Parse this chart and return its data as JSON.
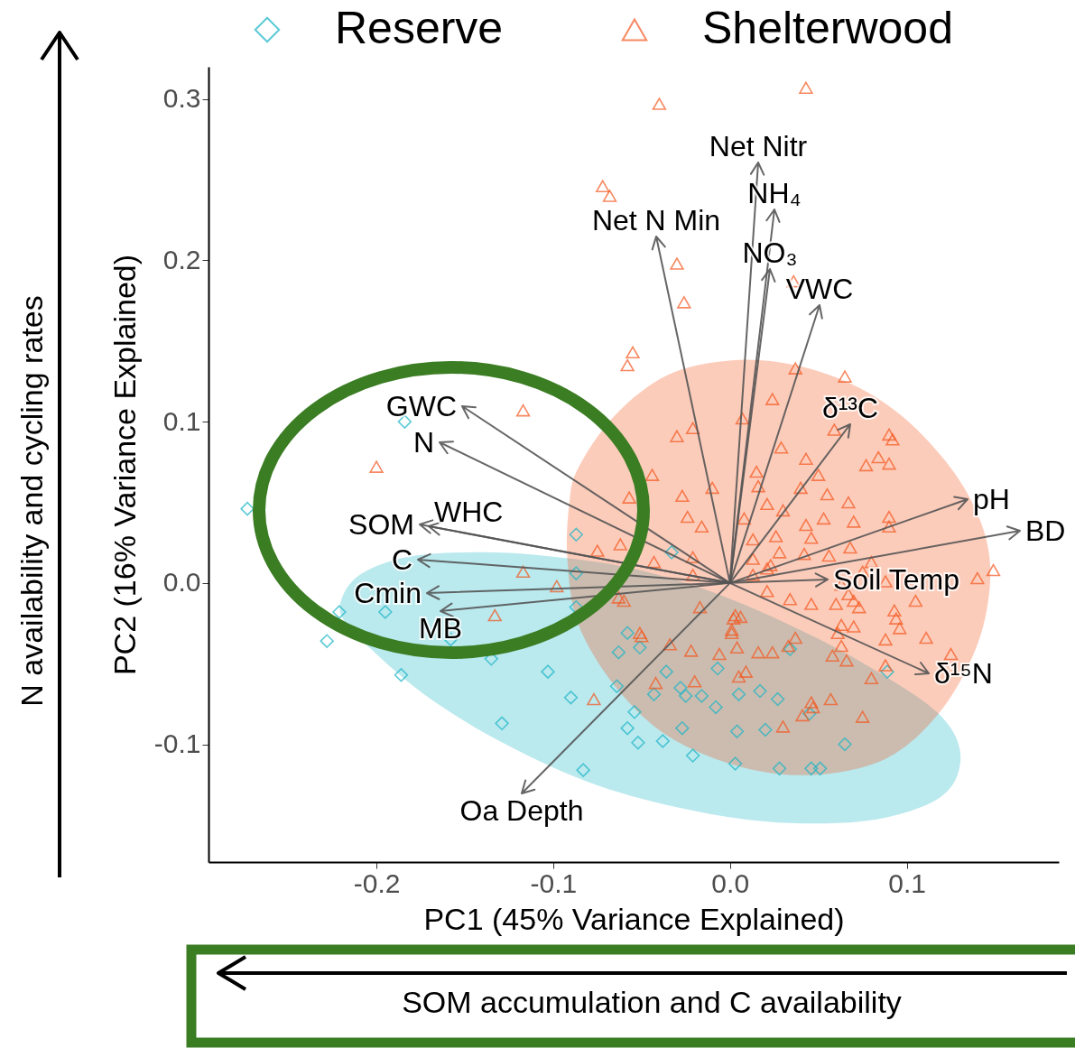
{
  "chart_data": {
    "type": "scatter",
    "xlabel": "PC1 (45% Variance Explained)",
    "ylabel": "PC2 (16% Variance Explained)",
    "xlim": [
      -0.295,
      0.186
    ],
    "ylim": [
      -0.173,
      0.32
    ],
    "xticks": [
      -0.2,
      -0.1,
      {
        "value": 0,
        "label": "0.0"
      },
      0.1
    ],
    "yticks": [
      -0.1,
      {
        "value": 0,
        "label": "0.0"
      },
      0.1,
      0.2,
      0.3
    ],
    "legend": "top",
    "annotations": [
      "N availability and cycling rates",
      "SOM accumulation and C availability",
      "Net Nitr",
      "NH₄",
      "NO₃",
      "VWC",
      "Net N Min",
      "GWC",
      "N",
      "SOM",
      "WHC",
      "C",
      "Cmin",
      "MB",
      "Oa Depth",
      "δ¹³C",
      "pH",
      "BD",
      "Soil Temp",
      "δ¹⁵N"
    ],
    "series": [
      {
        "type": "area",
        "color": "#1ab5c6",
        "x": [
          -0.219,
          -0.208,
          -0.183,
          -0.147,
          -0.106,
          -0.055,
          -0.004,
          0.047,
          0.088,
          0.118,
          0.13,
          0.126,
          0.108,
          0.073,
          0.021,
          -0.03,
          -0.081,
          -0.132,
          -0.173,
          -0.203,
          -0.219
        ],
        "values": [
          -0.008,
          0.006,
          0.016,
          0.019,
          0.017,
          0.009,
          -0.008,
          -0.033,
          -0.058,
          -0.081,
          -0.103,
          -0.125,
          -0.139,
          -0.148,
          -0.148,
          -0.139,
          -0.123,
          -0.097,
          -0.069,
          -0.041,
          -0.022
        ]
      },
      {
        "type": "area",
        "color": "#f4561d",
        "x": [
          -0.086,
          -0.065,
          -0.035,
          0.001,
          0.037,
          0.073,
          0.103,
          0.129,
          0.144,
          0.147,
          0.139,
          0.118,
          0.088,
          0.047,
          0.006,
          -0.035,
          -0.065,
          -0.086,
          -0.092,
          -0.091
        ],
        "values": [
          0.071,
          0.104,
          0.129,
          0.138,
          0.135,
          0.121,
          0.098,
          0.065,
          0.031,
          -0.002,
          -0.041,
          -0.081,
          -0.109,
          -0.119,
          -0.114,
          -0.095,
          -0.064,
          -0.025,
          0.015,
          0.048
        ]
      },
      {
        "name": "Reserve",
        "color": "#1ab5c6",
        "marker": "diamond",
        "x": [
          -0.184,
          -0.273,
          -0.087,
          -0.087,
          -0.221,
          -0.195,
          -0.087,
          -0.228,
          -0.158,
          -0.135,
          -0.186,
          -0.103,
          -0.09,
          -0.129,
          -0.083,
          -0.033,
          -0.058,
          -0.063,
          -0.051,
          -0.036,
          -0.007,
          0.034,
          0.089,
          -0.064,
          -0.043,
          -0.028,
          -0.025,
          -0.016,
          -0.008,
          0.005,
          0.017,
          0.027,
          -0.054,
          0.045,
          -0.058,
          -0.052,
          -0.038,
          -0.027,
          0.004,
          0.02,
          -0.021,
          0.065,
          0.003,
          0.028,
          0.046,
          0.051
        ],
        "values": [
          0.1,
          0.046,
          0.03,
          0.006,
          -0.018,
          -0.018,
          -0.015,
          -0.036,
          -0.035,
          -0.047,
          -0.057,
          -0.055,
          -0.071,
          -0.087,
          -0.116,
          0.019,
          -0.031,
          -0.043,
          -0.04,
          -0.055,
          -0.053,
          -0.041,
          -0.055,
          -0.064,
          -0.069,
          -0.065,
          -0.07,
          -0.07,
          -0.077,
          -0.069,
          -0.067,
          -0.072,
          -0.08,
          -0.081,
          -0.09,
          -0.099,
          -0.098,
          -0.09,
          -0.092,
          -0.091,
          -0.107,
          -0.1,
          -0.112,
          -0.115,
          -0.115,
          -0.115
        ]
      },
      {
        "name": "Shelterwood",
        "color": "#f4561d",
        "marker": "triangle",
        "x": [
          0.043,
          -0.04,
          -0.072,
          -0.068,
          -0.03,
          -0.026,
          0.036,
          -0.055,
          -0.058,
          -0.117,
          -0.2,
          -0.117,
          -0.098,
          -0.133,
          0.037,
          0.065,
          0.024,
          0.007,
          0.059,
          0.09,
          0.092,
          0.029,
          -0.03,
          -0.021,
          0.043,
          0.084,
          0.077,
          0.09,
          -0.044,
          0.015,
          0.05,
          -0.01,
          0.016,
          0.04,
          -0.027,
          -0.057,
          0.055,
          0.067,
          0.021,
          0.03,
          -0.024,
          -0.016,
          0.008,
          0.043,
          0.053,
          0.07,
          0.09,
          0.09,
          0.046,
          0.013,
          0.026,
          -0.075,
          -0.062,
          -0.043,
          -0.021,
          0.013,
          0.028,
          0.042,
          0.056,
          0.068,
          0.08,
          0.149,
          0.14,
          0.021,
          0.023,
          0.013,
          0.063,
          0.075,
          0.088,
          -0.063,
          -0.06,
          -0.017,
          0.021,
          0.034,
          0.046,
          0.06,
          0.067,
          0.07,
          0.073,
          0.093,
          0.094,
          0.105,
          -0.021,
          0.003,
          0.006,
          0.002,
          0.001,
          0.001,
          -0.051,
          -0.05,
          -0.034,
          -0.022,
          -0.006,
          0.004,
          0.016,
          0.024,
          0.033,
          0.037,
          0.096,
          0.088,
          0.111,
          0.125,
          0.063,
          0.07,
          0.061,
          0.063,
          0.058,
          0.066,
          0.088,
          0.08,
          -0.042,
          -0.02,
          0.005,
          0.009,
          -0.077,
          0.046,
          0.047,
          0.041,
          0.057,
          0.075,
          0.03
        ],
        "values": [
          0.307,
          0.297,
          0.246,
          0.24,
          0.198,
          0.174,
          0.187,
          0.143,
          0.135,
          0.107,
          0.072,
          0.007,
          -0.002,
          -0.02,
          0.133,
          0.128,
          0.114,
          0.102,
          0.095,
          0.092,
          0.089,
          0.084,
          0.091,
          0.096,
          0.077,
          0.078,
          0.073,
          0.074,
          0.067,
          0.069,
          0.067,
          0.059,
          0.06,
          0.059,
          0.054,
          0.053,
          0.055,
          0.05,
          0.049,
          0.045,
          0.041,
          0.035,
          0.04,
          0.036,
          0.04,
          0.038,
          0.041,
          0.035,
          0.028,
          0.027,
          0.029,
          0.02,
          0.024,
          0.013,
          0.016,
          0.015,
          0.019,
          0.018,
          0.017,
          0.022,
          0.013,
          0.008,
          0.003,
          0.009,
          0.011,
          0.005,
          -0.001,
          0.007,
          0.001,
          -0.009,
          -0.011,
          -0.015,
          -0.005,
          -0.01,
          -0.013,
          -0.013,
          -0.007,
          -0.011,
          -0.015,
          -0.017,
          -0.022,
          -0.011,
          0.005,
          -0.02,
          -0.021,
          -0.022,
          -0.029,
          -0.031,
          -0.031,
          -0.033,
          -0.038,
          -0.042,
          -0.044,
          -0.04,
          -0.043,
          -0.043,
          -0.039,
          -0.034,
          -0.028,
          -0.035,
          -0.034,
          -0.044,
          -0.026,
          -0.027,
          -0.031,
          -0.039,
          -0.045,
          -0.048,
          -0.051,
          -0.059,
          -0.062,
          -0.061,
          -0.058,
          -0.055,
          -0.072,
          -0.074,
          -0.077,
          -0.082,
          -0.072,
          -0.083,
          -0.089
        ]
      }
    ]
  }
}
